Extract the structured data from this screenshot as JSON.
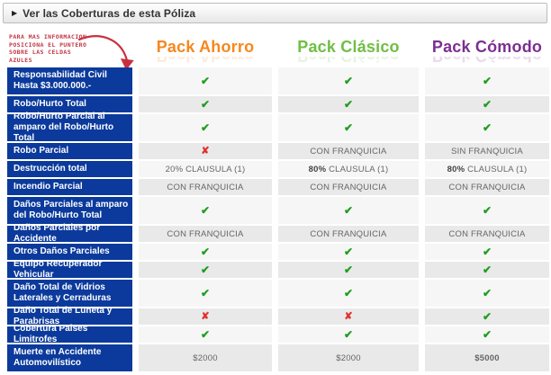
{
  "header": {
    "title": "Ver las Coberturas de esta Póliza",
    "expand_icon": "▶"
  },
  "note": {
    "lines": [
      "PARA MAS INFORMACION",
      "POSICIONA EL PUNTERO",
      "SOBRE LAS CELDAS",
      "AZULES"
    ]
  },
  "icons": {
    "check_glyph": "✔",
    "cross_glyph": "✘"
  },
  "colors": {
    "label_bg": "#0b3a9c",
    "check_green": "#1f9e1f",
    "cross_red": "#e22f2f",
    "note_red": "#c23545",
    "row_light": "#f6f6f6",
    "row_dark": "#e9e9e9"
  },
  "packs": [
    {
      "name": "Pack Ahorro",
      "color": "#f6871f"
    },
    {
      "name": "Pack Clásico",
      "color": "#6fbf44"
    },
    {
      "name": "Pack Cómodo",
      "color": "#7c2f92"
    }
  ],
  "rows": [
    {
      "label": "Responsabilidad Civil Hasta $3.000.000.-",
      "tall": true,
      "cells": [
        {
          "t": "check"
        },
        {
          "t": "check"
        },
        {
          "t": "check"
        }
      ]
    },
    {
      "label": "Robo/Hurto Total",
      "tall": false,
      "cells": [
        {
          "t": "check"
        },
        {
          "t": "check"
        },
        {
          "t": "check"
        }
      ]
    },
    {
      "label": "Robo/Hurto Parcial al amparo del Robo/Hurto Total",
      "tall": true,
      "cells": [
        {
          "t": "check"
        },
        {
          "t": "check"
        },
        {
          "t": "check"
        }
      ]
    },
    {
      "label": "Robo Parcial",
      "tall": false,
      "cells": [
        {
          "t": "cross"
        },
        {
          "t": "text",
          "v": "CON FRANQUICIA"
        },
        {
          "t": "text",
          "v": "SIN FRANQUICIA"
        }
      ]
    },
    {
      "label": "Destrucción total",
      "tall": false,
      "cells": [
        {
          "t": "text",
          "v": "20% CLAUSULA (1)"
        },
        {
          "t": "text",
          "v": "80% CLAUSULA (1)",
          "strong_prefix": "80%"
        },
        {
          "t": "text",
          "v": "80% CLAUSULA (1)",
          "strong_prefix": "80%"
        }
      ]
    },
    {
      "label": "Incendio Parcial",
      "tall": false,
      "cells": [
        {
          "t": "text",
          "v": "CON FRANQUICIA"
        },
        {
          "t": "text",
          "v": "CON FRANQUICIA"
        },
        {
          "t": "text",
          "v": "CON FRANQUICIA"
        }
      ]
    },
    {
      "label": "Daños Parciales al amparo del Robo/Hurto Total",
      "tall": true,
      "cells": [
        {
          "t": "check"
        },
        {
          "t": "check"
        },
        {
          "t": "check"
        }
      ]
    },
    {
      "label": "Daños Parciales por Accidente",
      "tall": false,
      "cells": [
        {
          "t": "text",
          "v": "CON FRANQUICIA"
        },
        {
          "t": "text",
          "v": "CON FRANQUICIA"
        },
        {
          "t": "text",
          "v": "CON FRANQUICIA"
        }
      ]
    },
    {
      "label": "Otros Daños Parciales",
      "tall": false,
      "cells": [
        {
          "t": "check"
        },
        {
          "t": "check"
        },
        {
          "t": "check"
        }
      ]
    },
    {
      "label": "Equipo Recuperador Vehicular",
      "tall": false,
      "cells": [
        {
          "t": "check"
        },
        {
          "t": "check"
        },
        {
          "t": "check"
        }
      ]
    },
    {
      "label": "Daño Total de Vidrios Laterales y Cerraduras",
      "tall": true,
      "cells": [
        {
          "t": "check"
        },
        {
          "t": "check"
        },
        {
          "t": "check"
        }
      ]
    },
    {
      "label": "Daño Total de Luneta y Parabrisas",
      "tall": false,
      "cells": [
        {
          "t": "cross"
        },
        {
          "t": "cross"
        },
        {
          "t": "check"
        }
      ]
    },
    {
      "label": "Cobertura Paises Limitrofes",
      "tall": false,
      "cells": [
        {
          "t": "check"
        },
        {
          "t": "check"
        },
        {
          "t": "check"
        }
      ]
    },
    {
      "label": "Muerte en Accidente Automovilístico",
      "tall": true,
      "cells": [
        {
          "t": "text",
          "v": "$2000"
        },
        {
          "t": "text",
          "v": "$2000"
        },
        {
          "t": "text",
          "v": "$5000",
          "strong": true
        }
      ]
    }
  ]
}
